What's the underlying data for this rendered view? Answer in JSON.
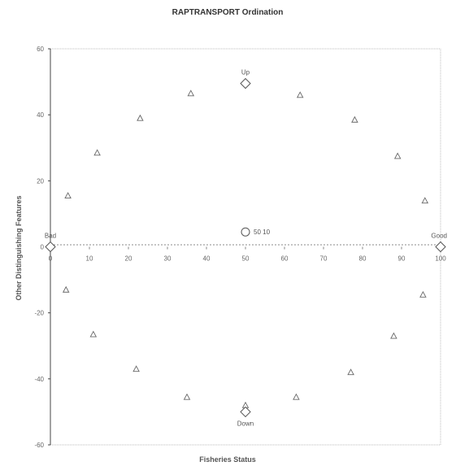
{
  "chart_data": {
    "type": "scatter",
    "title": "RAPTRANSPORT Ordination",
    "xlabel": "Fisheries Status",
    "ylabel": "Other Distinguishing Features",
    "xlim": [
      0,
      100
    ],
    "ylim": [
      -60,
      60
    ],
    "x_ticks": [
      {
        "value": 0,
        "label": "0"
      },
      {
        "value": 10,
        "label": "10"
      },
      {
        "value": 20,
        "label": "20"
      },
      {
        "value": 30,
        "label": "30"
      },
      {
        "value": 40,
        "label": "40"
      },
      {
        "value": 50,
        "label": "50"
      },
      {
        "value": 60,
        "label": "60"
      },
      {
        "value": 70,
        "label": "70"
      },
      {
        "value": 80,
        "label": "80"
      },
      {
        "value": 90,
        "label": "90"
      },
      {
        "value": 100,
        "label": "100"
      }
    ],
    "y_ticks": [
      {
        "value": 60,
        "label": "60"
      },
      {
        "value": 40,
        "label": "40"
      },
      {
        "value": 20,
        "label": "20"
      },
      {
        "value": 0,
        "label": "0"
      },
      {
        "value": -20,
        "label": "-20"
      },
      {
        "value": -40,
        "label": "-40"
      },
      {
        "value": -60,
        "label": "-60"
      }
    ],
    "grid": false,
    "legend": "none",
    "series": [
      {
        "marker": "triangle",
        "points": [
          [
            4.5,
            15.5
          ],
          [
            12,
            28.5
          ],
          [
            23,
            39
          ],
          [
            36,
            46.5
          ],
          [
            64,
            46
          ],
          [
            78,
            38.5
          ],
          [
            89,
            27.5
          ],
          [
            96,
            14
          ],
          [
            4,
            -13
          ],
          [
            11,
            -26.5
          ],
          [
            22,
            -37
          ],
          [
            35,
            -45.5
          ],
          [
            63,
            -45.5
          ],
          [
            77,
            -38
          ],
          [
            88,
            -27
          ],
          [
            95.5,
            -14.5
          ],
          [
            50,
            -48
          ]
        ]
      },
      {
        "marker": "diamond",
        "points": [
          {
            "x": 50,
            "y": 49.5,
            "label": "Up",
            "label_pos": "above"
          },
          {
            "x": 50,
            "y": -50,
            "label": "Down",
            "label_pos": "below"
          },
          {
            "x": 0,
            "y": 0,
            "label": "Bad",
            "label_pos": "above"
          },
          {
            "x": 100,
            "y": 0,
            "label": "Good",
            "label_pos": "above"
          }
        ]
      },
      {
        "marker": "circle",
        "points": [
          {
            "x": 50,
            "y": 4.5,
            "label": "50 10",
            "label_pos": "right"
          }
        ]
      }
    ]
  }
}
